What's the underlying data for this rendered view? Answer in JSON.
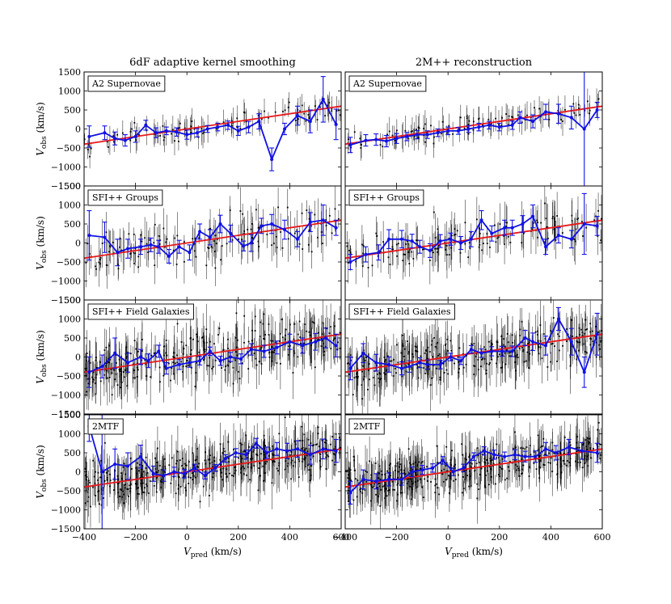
{
  "chart_data": {
    "type": "scatter",
    "column_titles": [
      "6dF adaptive kernel smoothing",
      "2M++ reconstruction"
    ],
    "row_labels": [
      "A2 Supernovae",
      "SFI++ Groups",
      "SFI++ Field Galaxies",
      "2MTF"
    ],
    "xlabel": "V_pred (km/s)",
    "ylabel": "V_obs (km/s)",
    "xlim": [
      -400,
      600
    ],
    "ylim": [
      -1500,
      1500
    ],
    "xticks": [
      -400,
      -200,
      0,
      200,
      400,
      600
    ],
    "xtick_labels": [
      "−400",
      "−200",
      "0",
      "200",
      "400",
      "600"
    ],
    "yticks": [
      -1500,
      -1000,
      -500,
      0,
      500,
      1000,
      1500
    ],
    "ytick_labels": [
      "−1500",
      "−1000",
      "−500",
      "0",
      "500",
      "1000",
      "1500"
    ],
    "fit_line": {
      "x": [
        -400,
        600
      ],
      "y": [
        -400,
        600
      ],
      "color": "#e8181a"
    },
    "binned_color": "#1010e6",
    "scatter_color": "#000000",
    "scatter_counts": [
      [
        110,
        110
      ],
      [
        150,
        150
      ],
      [
        320,
        320
      ],
      [
        420,
        420
      ]
    ],
    "scatter_sigma": [
      [
        230,
        230
      ],
      [
        450,
        450
      ],
      [
        550,
        550
      ],
      [
        500,
        500
      ]
    ],
    "panels": [
      [
        {
          "x": [
            -380,
            -320,
            -280,
            -240,
            -200,
            -160,
            -120,
            -80,
            -40,
            0,
            40,
            80,
            120,
            160,
            200,
            240,
            280,
            330,
            380,
            430,
            480,
            530,
            580
          ],
          "y": [
            -200,
            -100,
            -250,
            -300,
            -200,
            100,
            -100,
            -50,
            -80,
            -150,
            -100,
            0,
            50,
            100,
            -50,
            50,
            200,
            -800,
            0,
            350,
            200,
            780,
            120
          ],
          "err": [
            280,
            180,
            170,
            150,
            150,
            130,
            130,
            100,
            110,
            120,
            110,
            90,
            100,
            110,
            120,
            150,
            200,
            300,
            150,
            250,
            300,
            600,
            400
          ]
        },
        {
          "x": [
            -380,
            -320,
            -280,
            -240,
            -200,
            -160,
            -120,
            -80,
            -40,
            0,
            40,
            80,
            120,
            160,
            200,
            250,
            280,
            330,
            380,
            430,
            480,
            530,
            580
          ],
          "y": [
            -420,
            -300,
            -280,
            -320,
            -250,
            -200,
            -150,
            -150,
            -100,
            -50,
            -50,
            0,
            50,
            100,
            50,
            100,
            300,
            200,
            450,
            400,
            300,
            0,
            500
          ],
          "err": [
            200,
            150,
            150,
            150,
            130,
            110,
            110,
            100,
            100,
            100,
            90,
            90,
            100,
            100,
            100,
            110,
            150,
            170,
            200,
            250,
            300,
            1800,
            200
          ]
        }
      ],
      [
        {
          "x": [
            -380,
            -320,
            -270,
            -230,
            -180,
            -140,
            -110,
            -70,
            -30,
            10,
            50,
            90,
            130,
            170,
            220,
            250,
            290,
            330,
            380,
            430,
            480,
            530,
            580
          ],
          "y": [
            200,
            150,
            -250,
            -150,
            -100,
            -50,
            -100,
            -350,
            -100,
            -250,
            300,
            150,
            500,
            250,
            -80,
            0,
            450,
            500,
            350,
            100,
            550,
            600,
            400
          ],
          "err": [
            650,
            400,
            350,
            250,
            200,
            180,
            170,
            180,
            170,
            200,
            200,
            200,
            230,
            220,
            130,
            220,
            200,
            250,
            250,
            200,
            250,
            400,
            200
          ]
        },
        {
          "x": [
            -380,
            -320,
            -270,
            -230,
            -180,
            -140,
            -110,
            -70,
            -30,
            10,
            50,
            90,
            130,
            170,
            220,
            250,
            290,
            330,
            380,
            430,
            480,
            530,
            580
          ],
          "y": [
            -500,
            -300,
            -250,
            100,
            100,
            50,
            -100,
            -200,
            50,
            100,
            0,
            100,
            600,
            250,
            400,
            400,
            500,
            700,
            -100,
            200,
            100,
            500,
            450
          ],
          "err": [
            200,
            200,
            200,
            250,
            230,
            180,
            170,
            180,
            170,
            160,
            170,
            200,
            250,
            200,
            200,
            200,
            220,
            300,
            200,
            200,
            230,
            800,
            250
          ]
        }
      ],
      [
        {
          "x": [
            -380,
            -330,
            -280,
            -230,
            -180,
            -150,
            -110,
            -80,
            -30,
            10,
            50,
            90,
            130,
            170,
            210,
            250,
            300,
            350,
            400,
            450,
            500,
            540,
            580
          ],
          "y": [
            -400,
            -250,
            100,
            -150,
            0,
            -100,
            150,
            -300,
            -200,
            -150,
            -100,
            150,
            -100,
            0,
            -50,
            200,
            150,
            250,
            400,
            300,
            400,
            500,
            300
          ],
          "err": [
            400,
            300,
            400,
            250,
            200,
            180,
            160,
            150,
            130,
            120,
            110,
            110,
            120,
            120,
            130,
            150,
            160,
            170,
            200,
            200,
            220,
            260,
            300
          ]
        },
        {
          "x": [
            -380,
            -330,
            -280,
            -230,
            -180,
            -150,
            -110,
            -80,
            -30,
            10,
            50,
            90,
            130,
            170,
            210,
            250,
            300,
            330,
            380,
            430,
            480,
            530,
            580
          ],
          "y": [
            -300,
            100,
            -150,
            -200,
            -300,
            -250,
            -150,
            -200,
            -200,
            0,
            -100,
            200,
            100,
            150,
            150,
            150,
            500,
            400,
            300,
            1000,
            400,
            -400,
            600
          ],
          "err": [
            300,
            250,
            220,
            200,
            170,
            150,
            130,
            120,
            110,
            100,
            100,
            100,
            110,
            120,
            130,
            140,
            200,
            230,
            250,
            300,
            350,
            400,
            550
          ]
        }
      ],
      [
        {
          "x": [
            -380,
            -330,
            -280,
            -230,
            -180,
            -130,
            -90,
            -50,
            -10,
            30,
            70,
            110,
            150,
            190,
            230,
            270,
            310,
            350,
            390,
            430,
            480,
            530,
            580
          ],
          "y": [
            1200,
            0,
            200,
            150,
            400,
            -50,
            -100,
            0,
            -50,
            100,
            -100,
            100,
            350,
            500,
            450,
            750,
            500,
            600,
            550,
            600,
            450,
            600,
            550
          ],
          "err": [
            400,
            1500,
            400,
            350,
            300,
            200,
            150,
            120,
            110,
            100,
            90,
            90,
            100,
            110,
            120,
            130,
            150,
            170,
            200,
            220,
            250,
            260,
            300
          ]
        },
        {
          "x": [
            -380,
            -330,
            -280,
            -230,
            -180,
            -140,
            -100,
            -60,
            -20,
            20,
            60,
            100,
            140,
            180,
            220,
            260,
            300,
            340,
            380,
            420,
            470,
            520,
            580
          ],
          "y": [
            -550,
            -200,
            -250,
            -200,
            -200,
            0,
            50,
            100,
            300,
            0,
            100,
            400,
            550,
            450,
            400,
            450,
            400,
            400,
            600,
            500,
            650,
            550,
            500
          ],
          "err": [
            300,
            250,
            200,
            170,
            150,
            130,
            120,
            110,
            100,
            100,
            100,
            100,
            110,
            120,
            120,
            130,
            140,
            150,
            170,
            190,
            200,
            220,
            250
          ]
        }
      ]
    ]
  }
}
